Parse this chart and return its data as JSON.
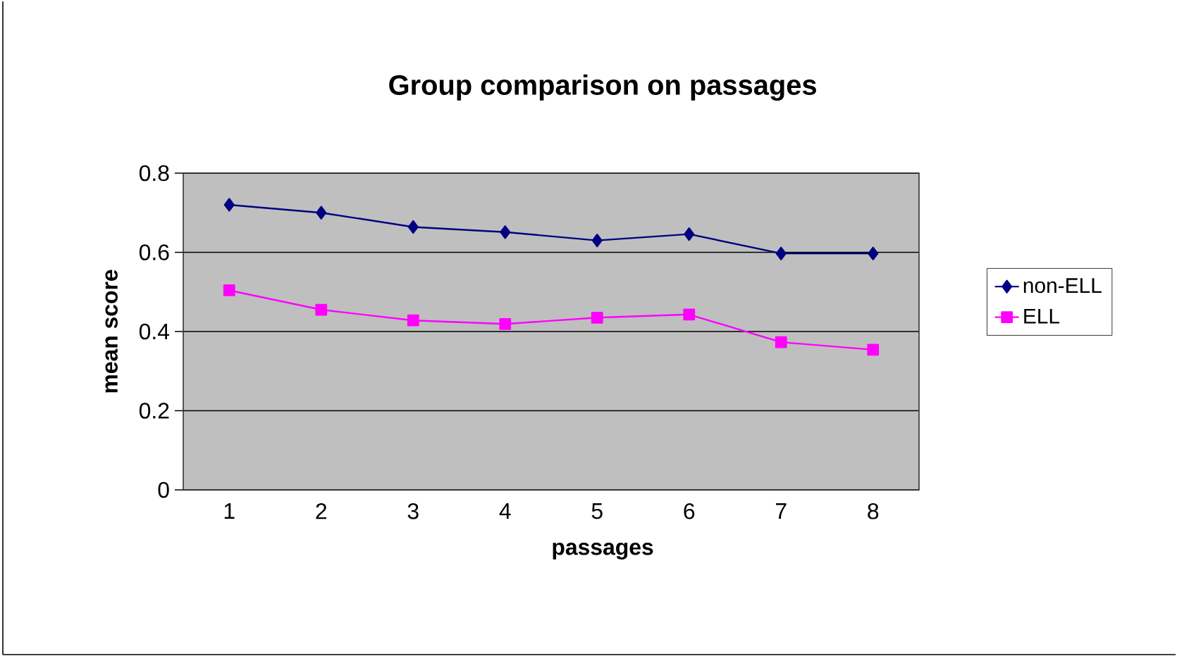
{
  "chart_data": {
    "type": "line",
    "title": "Group comparison on passages",
    "xlabel": "passages",
    "ylabel": "mean score",
    "categories": [
      "1",
      "2",
      "3",
      "4",
      "5",
      "6",
      "7",
      "8"
    ],
    "series": [
      {
        "name": "non-ELL",
        "color": "#000080",
        "marker": "diamond",
        "values": [
          0.72,
          0.7,
          0.664,
          0.651,
          0.63,
          0.646,
          0.597,
          0.597
        ]
      },
      {
        "name": "ELL",
        "color": "#ff00ff",
        "marker": "square",
        "values": [
          0.504,
          0.455,
          0.428,
          0.419,
          0.435,
          0.443,
          0.373,
          0.354
        ]
      }
    ],
    "ylim": [
      0,
      0.8
    ],
    "yticks": [
      0,
      0.2,
      0.4,
      0.6,
      0.8
    ],
    "grid": "y",
    "legend": "right",
    "line_style": "solid"
  }
}
